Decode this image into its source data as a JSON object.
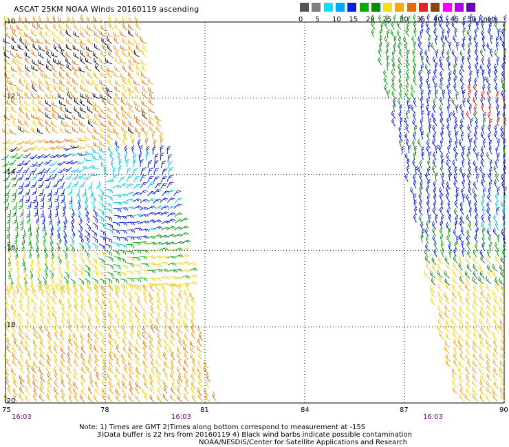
{
  "title": "ASCAT 25KM NOAA Winds 20160119 ascending",
  "legend": {
    "labels": [
      "0",
      "5",
      "10",
      "15",
      "20",
      "25",
      "30",
      "35",
      "40",
      "45",
      "50",
      "Knots"
    ],
    "colors": [
      "#555555",
      "#7f7f7f",
      "#00e5ff",
      "#00aaff",
      "#0022dd",
      "#00b000",
      "#118811",
      "#f5dd20",
      "#f0a818",
      "#e06a10",
      "#e82020",
      "#8b4513",
      "#ff00ff",
      "#b000e0",
      "#6a00b0"
    ]
  },
  "y_axis": {
    "labels": [
      "-10",
      "-12",
      "-14",
      "-16",
      "-18",
      "-20"
    ]
  },
  "x_axis": {
    "labels": [
      "75",
      "78",
      "81",
      "84",
      "87",
      "90"
    ]
  },
  "times": [
    "16:03",
    "16:03",
    "16:03"
  ],
  "notes": [
    "Note: 1) Times are GMT 2)Times along bottom correspond to measurement at -15S",
    "3)Data buffer is 22 hrs from 20160119 4) Black wind barbs indicate possible contamination",
    "NOAA/NESDIS/Center for Satellite Applications and Research"
  ],
  "colors": {
    "black": "#111111",
    "cyan": "#00c8e8",
    "blue": "#0018d8",
    "green": "#00a800",
    "darkgreen": "#157a15",
    "yellow": "#f0d418",
    "gold": "#eaa51a",
    "orange": "#e07214",
    "red": "#e21818"
  }
}
